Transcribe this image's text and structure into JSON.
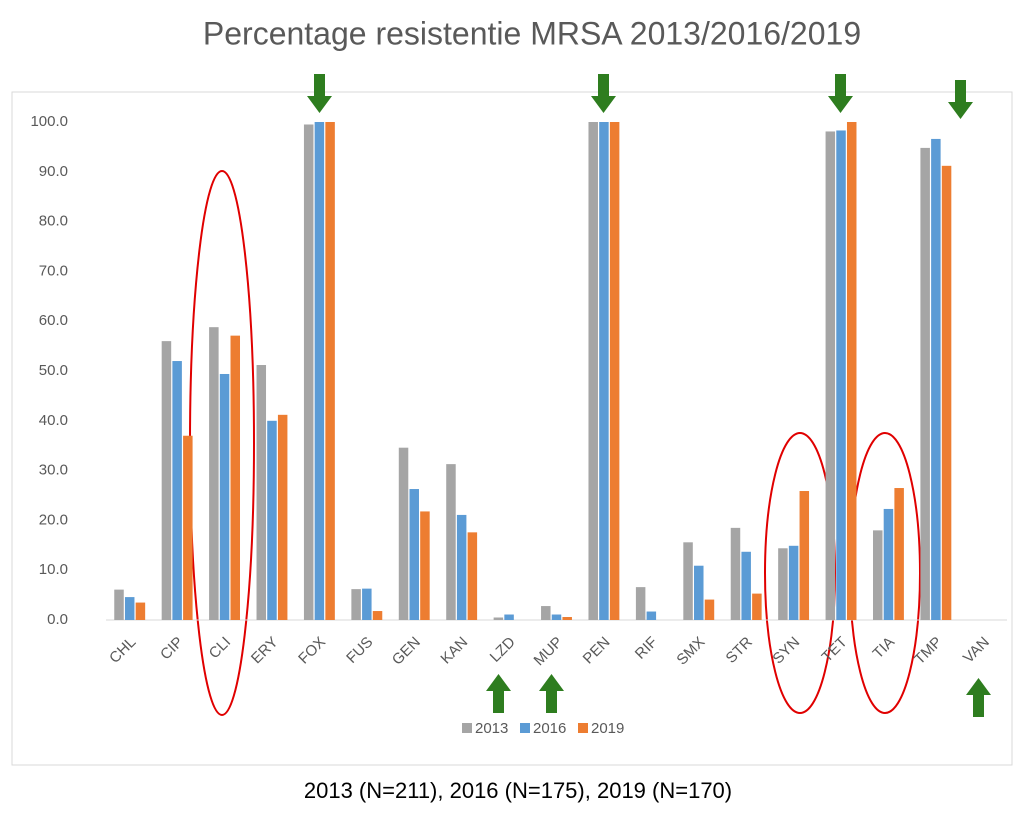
{
  "chart_data": {
    "type": "bar",
    "title": "Percentage resistentie MRSA 2013/2016/2019",
    "footnote": "2013 (N=211), 2016 (N=175), 2019 (N=170)",
    "categories": [
      "CHL",
      "CIP",
      "CLI",
      "ERY",
      "FOX",
      "FUS",
      "GEN",
      "KAN",
      "LZD",
      "MUP",
      "PEN",
      "RIF",
      "SMX",
      "STR",
      "SYN",
      "TET",
      "TIA",
      "TMP",
      "VAN"
    ],
    "series": [
      {
        "name": "2013",
        "color": "#a5a5a5",
        "values": [
          6.1,
          56,
          58.8,
          51.2,
          99.5,
          6.2,
          34.6,
          31.3,
          0.5,
          2.8,
          100,
          6.6,
          15.6,
          18.5,
          14.4,
          98.1,
          18,
          94.8,
          0
        ]
      },
      {
        "name": "2016",
        "color": "#5b9bd5",
        "values": [
          4.6,
          52,
          49.4,
          40,
          100,
          6.3,
          26.3,
          21.1,
          1.1,
          1.1,
          100,
          1.7,
          10.9,
          13.7,
          14.9,
          98.3,
          22.3,
          96.6,
          0
        ]
      },
      {
        "name": "2019",
        "color": "#ed7d31",
        "values": [
          3.5,
          37,
          57.1,
          41.2,
          100,
          1.8,
          21.8,
          17.6,
          0,
          0.6,
          100,
          0,
          4.1,
          5.3,
          25.9,
          100,
          26.5,
          91.2,
          0
        ]
      }
    ],
    "ylim": [
      0,
      100
    ],
    "yticks": [
      {
        "value": 0,
        "label": "0.0"
      },
      {
        "value": 10,
        "label": "10.0"
      },
      {
        "value": 20,
        "label": "20.0"
      },
      {
        "value": 30,
        "label": "30.0"
      },
      {
        "value": 40,
        "label": "40.0"
      },
      {
        "value": 50,
        "label": "50.0"
      },
      {
        "value": 60,
        "label": "60.0"
      },
      {
        "value": 70,
        "label": "70.0"
      },
      {
        "value": 80,
        "label": "80.0"
      },
      {
        "value": 90,
        "label": "90.0"
      },
      {
        "value": 100,
        "label": "100.0"
      }
    ],
    "grid": false,
    "legend": "bottom"
  }
}
